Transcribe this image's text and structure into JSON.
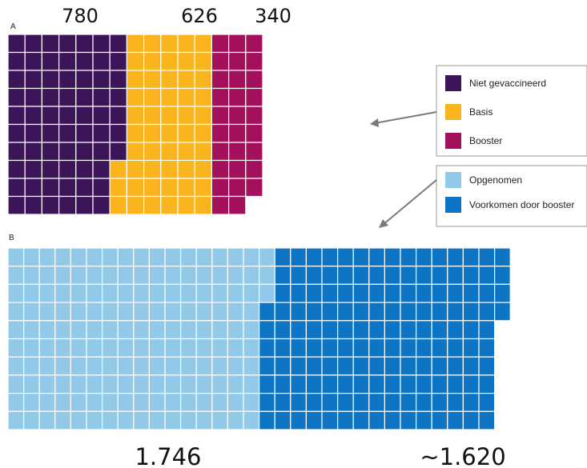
{
  "chart_data": [
    {
      "type": "waffle",
      "panel_label": "A",
      "legend_position": "right",
      "series": [
        {
          "name": "Niet gevaccineerd",
          "label": "780",
          "value": 780,
          "color": "#3c1458"
        },
        {
          "name": "Basis",
          "label": "626",
          "value": 626,
          "color": "#f9b41e"
        },
        {
          "name": "Booster",
          "label": "340",
          "value": 340,
          "color": "#a3115c"
        }
      ]
    },
    {
      "type": "waffle",
      "panel_label": "B",
      "legend_position": "right",
      "series": [
        {
          "name": "Opgenomen",
          "label": "1.746",
          "value": 1746,
          "color": "#93c9e8"
        },
        {
          "name": "Voorkomen door booster",
          "label": "~1.620",
          "value": 1620,
          "color": "#0e74c4"
        }
      ]
    }
  ]
}
